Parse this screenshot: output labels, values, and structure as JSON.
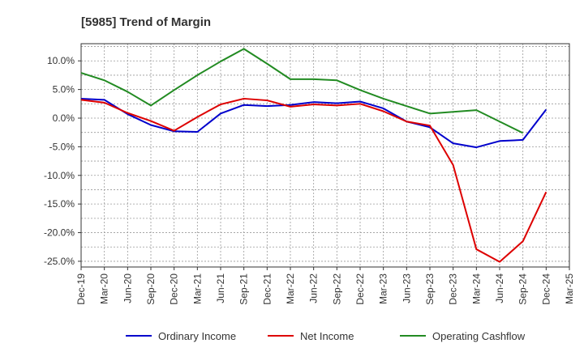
{
  "chart_data": {
    "type": "line",
    "title": "[5985]  Trend of Margin",
    "xlabel": "",
    "ylabel": "",
    "categories": [
      "Dec-19",
      "Mar-20",
      "Jun-20",
      "Sep-20",
      "Dec-20",
      "Mar-21",
      "Jun-21",
      "Sep-21",
      "Dec-21",
      "Mar-22",
      "Jun-22",
      "Sep-22",
      "Dec-22",
      "Mar-23",
      "Jun-23",
      "Sep-23",
      "Dec-23",
      "Mar-24",
      "Jun-24",
      "Sep-24",
      "Dec-24",
      "Mar-25"
    ],
    "ylim": [
      -26,
      13
    ],
    "yticks": [
      10,
      5,
      0,
      -5,
      -10,
      -15,
      -20,
      -25
    ],
    "ytick_labels": [
      "10.0%",
      "5.0%",
      "0.0%",
      "-5.0%",
      "-10.0%",
      "-15.0%",
      "-20.0%",
      "-25.0%"
    ],
    "grid": true,
    "legend_position": "bottom",
    "series": [
      {
        "name": "Ordinary Income",
        "color": "#0000cc",
        "values": [
          3.4,
          3.2,
          0.7,
          -1.2,
          -2.3,
          -2.4,
          0.8,
          2.3,
          2.1,
          2.3,
          2.8,
          2.6,
          2.9,
          1.7,
          -0.6,
          -1.6,
          -4.4,
          -5.1,
          -4.0,
          -3.8,
          1.5,
          null
        ]
      },
      {
        "name": "Net Income",
        "color": "#dd0000",
        "values": [
          3.2,
          2.7,
          0.9,
          -0.5,
          -2.2,
          0.2,
          2.4,
          3.4,
          3.1,
          2.0,
          2.4,
          2.2,
          2.5,
          1.2,
          -0.6,
          -1.3,
          -8.2,
          -22.9,
          -25.1,
          -21.5,
          -12.9,
          null
        ]
      },
      {
        "name": "Operating Cashflow",
        "color": "#228b22",
        "values": [
          7.9,
          6.6,
          4.6,
          2.2,
          4.9,
          7.5,
          9.9,
          12.1,
          9.5,
          6.8,
          6.8,
          6.6,
          4.9,
          3.4,
          2.1,
          0.8,
          1.1,
          1.4,
          -0.6,
          -2.6,
          null,
          null
        ]
      }
    ]
  }
}
